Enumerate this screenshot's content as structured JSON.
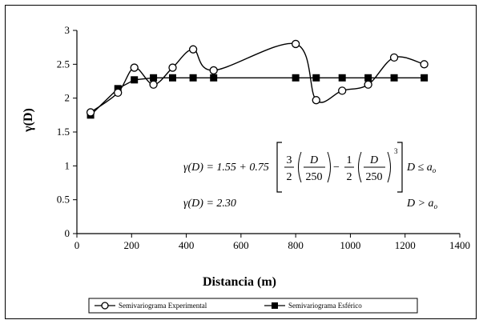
{
  "chart_data": {
    "type": "line",
    "title": "",
    "xlabel": "Distancia (m)",
    "ylabel": "γ(D)",
    "xlim": [
      0,
      1400
    ],
    "ylim": [
      0,
      3
    ],
    "xticks": [
      0,
      200,
      400,
      600,
      800,
      1000,
      1200,
      1400
    ],
    "yticks": [
      0,
      0.5,
      1,
      1.5,
      2,
      2.5,
      3
    ],
    "xtick_labels": [
      "0",
      "200",
      "400",
      "600",
      "800",
      "1000",
      "1200",
      "1400"
    ],
    "ytick_labels": [
      "0",
      "0.5",
      "1",
      "1.5",
      "2",
      "2.5",
      "3"
    ],
    "legend_position": "bottom",
    "grid": false,
    "series": [
      {
        "name": "Semivariograma Experimental",
        "marker": "open-circle",
        "line": "smooth",
        "color": "#000000",
        "x": [
          50,
          150,
          210,
          280,
          350,
          425,
          500,
          800,
          875,
          970,
          1065,
          1160,
          1270
        ],
        "y": [
          1.79,
          2.08,
          2.45,
          2.2,
          2.45,
          2.72,
          2.41,
          2.8,
          1.97,
          2.11,
          2.2,
          2.6,
          2.5
        ]
      },
      {
        "name": "Semivariograma Esférico",
        "marker": "filled-square",
        "line": "straight",
        "color": "#000000",
        "x": [
          50,
          150,
          210,
          280,
          350,
          425,
          500,
          800,
          875,
          970,
          1065,
          1160,
          1270
        ],
        "y": [
          1.75,
          2.14,
          2.27,
          2.3,
          2.3,
          2.3,
          2.3,
          2.3,
          2.3,
          2.3,
          2.3,
          2.3,
          2.3
        ]
      }
    ],
    "annotations": {
      "eq1_lhs": "γ(D) = 1.55 + 0.75",
      "eq1_f1_num": "3",
      "eq1_f1_den": "2",
      "eq1_f2_num": "D",
      "eq1_f2_den": "250",
      "eq1_minus": "−",
      "eq1_f3_num": "1",
      "eq1_f3_den": "2",
      "eq1_f4_num": "D",
      "eq1_f4_den": "250",
      "eq1_exp": "3",
      "eq1_cond": "D ≤ a",
      "eq1_cond_sub": "o",
      "eq2_lhs": "γ(D) = 2.30",
      "eq2_cond": "D > a",
      "eq2_cond_sub": "o"
    }
  }
}
